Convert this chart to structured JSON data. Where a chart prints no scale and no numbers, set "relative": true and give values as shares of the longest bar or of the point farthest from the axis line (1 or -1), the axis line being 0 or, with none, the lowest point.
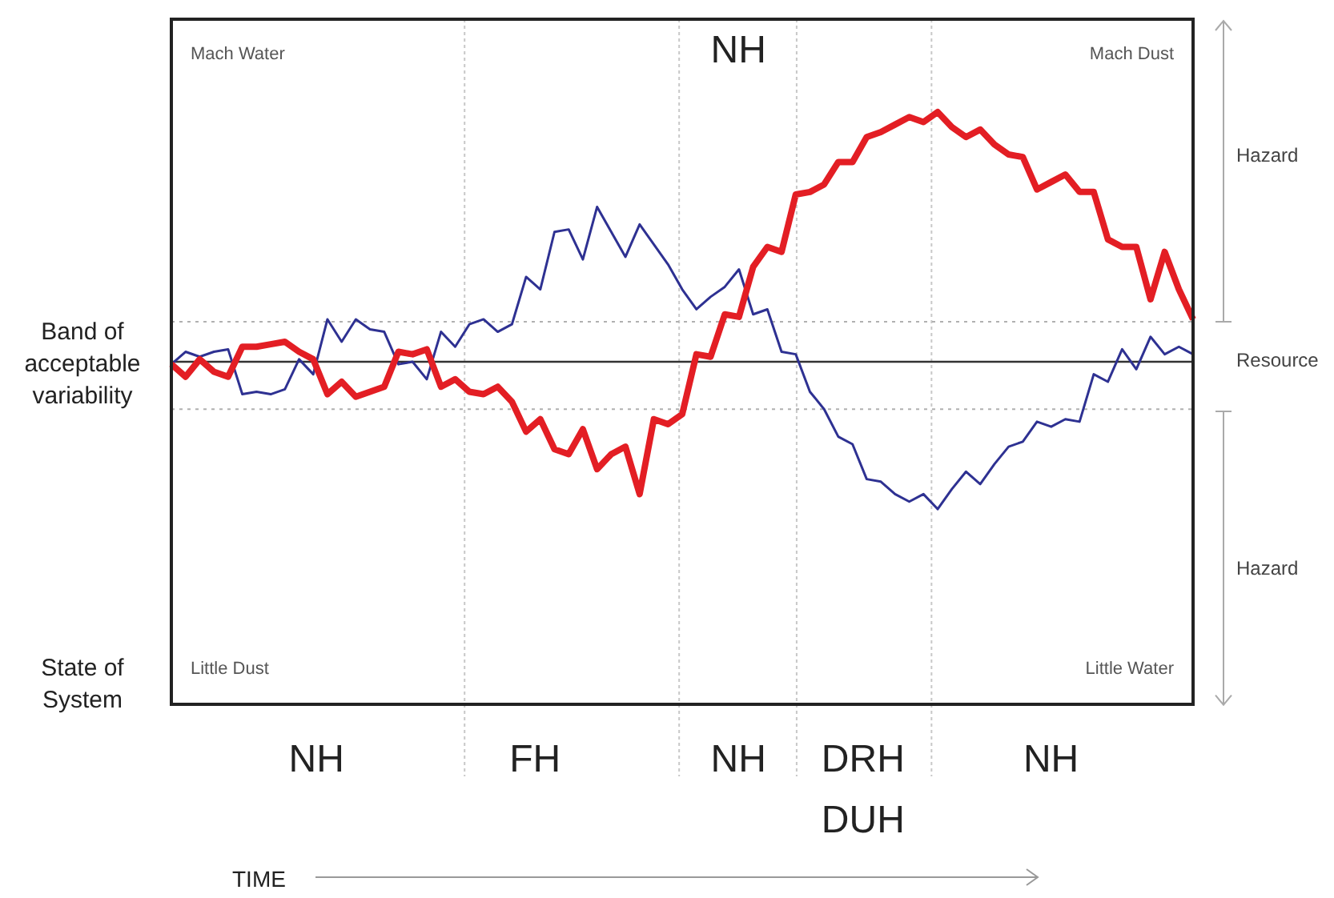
{
  "chart_data": {
    "type": "line",
    "relative": true,
    "marker": "none",
    "legend": false,
    "categories": [
      null,
      null,
      null,
      null,
      null,
      null,
      null,
      null,
      null,
      null,
      null,
      null,
      null,
      null,
      null,
      null,
      null,
      null,
      null,
      null,
      null,
      null,
      null,
      null,
      null,
      null,
      null,
      null,
      null,
      null,
      null,
      null,
      null,
      null,
      null,
      null,
      null,
      null,
      null,
      null,
      null,
      null,
      null,
      null,
      null,
      null,
      null,
      null,
      null,
      null,
      null,
      null,
      null,
      null,
      null,
      null,
      null,
      null,
      null,
      null,
      null,
      null,
      null,
      null,
      null,
      null,
      null,
      null,
      null,
      null,
      null,
      null,
      null
    ],
    "series": [
      {
        "color": "#e31e24",
        "values": [
          -0.01,
          -0.06,
          0.01,
          -0.04,
          -0.06,
          0.06,
          0.06,
          0.07,
          0.08,
          0.04,
          0.01,
          -0.13,
          -0.08,
          -0.14,
          -0.12,
          -0.1,
          0.04,
          0.03,
          0.05,
          -0.1,
          -0.07,
          -0.12,
          -0.13,
          -0.1,
          -0.16,
          -0.28,
          -0.23,
          -0.35,
          -0.37,
          -0.27,
          -0.43,
          -0.37,
          -0.34,
          -0.53,
          -0.23,
          -0.25,
          -0.21,
          0.03,
          0.02,
          0.19,
          0.18,
          0.38,
          0.46,
          0.44,
          0.67,
          0.68,
          0.71,
          0.8,
          0.8,
          0.9,
          0.92,
          0.95,
          0.98,
          0.96,
          1,
          0.94,
          0.9,
          0.93,
          0.87,
          0.83,
          0.82,
          0.69,
          0.72,
          0.75,
          0.68,
          0.68,
          0.49,
          0.46,
          0.46,
          0.25,
          0.44,
          0.29,
          0.17
        ]
      },
      {
        "color": "#2e3192",
        "values": [
          -0.01,
          0.04,
          0.02,
          0.04,
          0.05,
          -0.13,
          -0.12,
          -0.13,
          -0.11,
          0.01,
          -0.05,
          0.17,
          0.08,
          0.17,
          0.13,
          0.12,
          -0.01,
          0,
          -0.07,
          0.12,
          0.06,
          0.15,
          0.17,
          0.12,
          0.15,
          0.34,
          0.29,
          0.52,
          0.53,
          0.41,
          0.62,
          0.52,
          0.42,
          0.55,
          0.47,
          0.39,
          0.29,
          0.21,
          0.26,
          0.3,
          0.37,
          0.19,
          0.21,
          0.04,
          0.03,
          -0.12,
          -0.19,
          -0.3,
          -0.33,
          -0.47,
          -0.48,
          -0.53,
          -0.56,
          -0.53,
          -0.59,
          -0.51,
          -0.44,
          -0.49,
          -0.41,
          -0.34,
          -0.32,
          -0.24,
          -0.26,
          -0.23,
          -0.24,
          -0.05,
          -0.08,
          0.05,
          -0.03,
          0.1,
          0.03,
          0.06,
          0.03
        ]
      }
    ],
    "ref_lines": [
      {
        "axis": "y",
        "value": 0.16,
        "line_style": "dotted",
        "color": "#b0b0b0"
      },
      {
        "axis": "y",
        "value": -0.19,
        "line_style": "dotted",
        "color": "#b0b0b0"
      }
    ],
    "annotations": [
      "Mach Water",
      "Mach Dust",
      "Little Dust",
      "Little Water",
      "NH",
      "Hazard",
      "Resource",
      "Hazard",
      "Band of acceptable variability",
      "State of System",
      "NH",
      "FH",
      "NH",
      "DRH DUH",
      "NH",
      "TIME"
    ]
  }
}
